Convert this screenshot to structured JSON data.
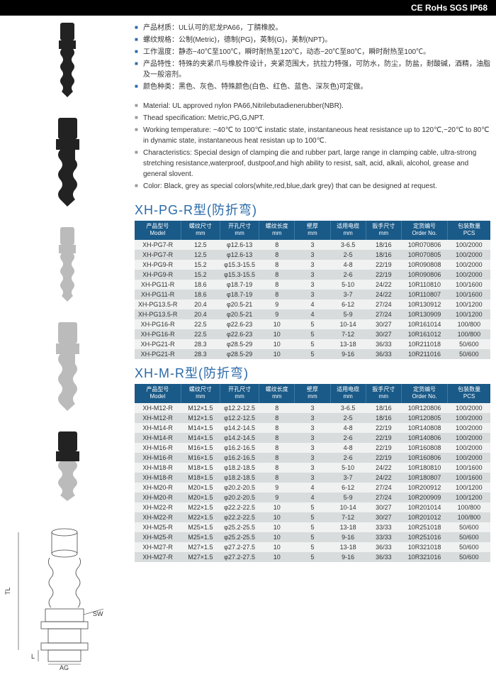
{
  "header_badges": "CE RoHs SGS IP68",
  "specs_cn": [
    "产品材质：UL认可的尼龙PA66，丁腈橡胶。",
    "螺纹规格：公制(Metric)，德制(PG)，英制(G)，美制(NPT)。",
    "工作温度：静态−40℃至100℃，瞬时耐热至120℃，动态−20℃至80℃，瞬时耐热至100℃。",
    "产品特性：特殊的夹紧爪与橡胶件设计，夹紧范围大，抗拉力特强，可防水，防尘，防盐，耐酸碱，酒精，油脂及一般溶剂。",
    "颜色种类：黑色、灰色、特殊颜色(白色、红色、蓝色、深灰色)可定做。"
  ],
  "specs_en": [
    "Material: UL approved nylon PA66,Nitrilebutadienerubber(NBR).",
    "Thead specification: Metric,PG,G,NPT.",
    "Working temperature: −40℃ to 100℃ instatic state, instantaneous heat resistance up to 120℃,−20℃ to 80℃ in dynamic state, instantaneous heat resistan up to 100℃.",
    "Characteristics: Special design of clamping die and rubber part, large range in clamping cable, ultra-strong stretching resistance,waterproof, dustpoof,and high ability to resist, salt, acid, alkali, alcohol, grease and general slovent.",
    "Color: Black, grey as special colors(white,red,blue,dark grey) that can be designed at request."
  ],
  "table_headers": [
    "产品型号\nModel",
    "螺纹尺寸\nmm",
    "开孔尺寸\nmm",
    "螺纹长度\nmm",
    "壁厚\nmm",
    "适用电缆\nmm",
    "扳手尺寸\nmm",
    "定货编号\nOrder No.",
    "包装数量\nPCS"
  ],
  "section1": {
    "title": "XH-PG-R型(防折弯)",
    "rows": [
      [
        "XH-PG7-R",
        "12.5",
        "φ12.6-13",
        "8",
        "3",
        "3-6.5",
        "18/16",
        "10R070806",
        "100/2000"
      ],
      [
        "XH-PG7-R",
        "12.5",
        "φ12.6-13",
        "8",
        "3",
        "2-5",
        "18/16",
        "10R070805",
        "100/2000"
      ],
      [
        "XH-PG9-R",
        "15.2",
        "φ15.3-15.5",
        "8",
        "3",
        "4-8",
        "22/19",
        "10R090808",
        "100/2000"
      ],
      [
        "XH-PG9-R",
        "15.2",
        "φ15.3-15.5",
        "8",
        "3",
        "2-6",
        "22/19",
        "10R090806",
        "100/2000"
      ],
      [
        "XH-PG11-R",
        "18.6",
        "φ18.7-19",
        "8",
        "3",
        "5-10",
        "24/22",
        "10R110810",
        "100/1600"
      ],
      [
        "XH-PG11-R",
        "18.6",
        "φ18.7-19",
        "8",
        "3",
        "3-7",
        "24/22",
        "10R110807",
        "100/1600"
      ],
      [
        "XH-PG13.5-R",
        "20.4",
        "φ20.5-21",
        "9",
        "4",
        "6-12",
        "27/24",
        "10R130912",
        "100/1200"
      ],
      [
        "XH-PG13.5-R",
        "20.4",
        "φ20.5-21",
        "9",
        "4",
        "5-9",
        "27/24",
        "10R130909",
        "100/1200"
      ],
      [
        "XH-PG16-R",
        "22.5",
        "φ22.6-23",
        "10",
        "5",
        "10-14",
        "30/27",
        "10R161014",
        "100/800"
      ],
      [
        "XH-PG16-R",
        "22.5",
        "φ22.6-23",
        "10",
        "5",
        "7-12",
        "30/27",
        "10R161012",
        "100/800"
      ],
      [
        "XH-PG21-R",
        "28.3",
        "φ28.5-29",
        "10",
        "5",
        "13-18",
        "36/33",
        "10R211018",
        "50/600"
      ],
      [
        "XH-PG21-R",
        "28.3",
        "φ28.5-29",
        "10",
        "5",
        "9-16",
        "36/33",
        "10R211016",
        "50/600"
      ]
    ]
  },
  "section2": {
    "title": "XH-M-R型(防折弯)",
    "rows": [
      [
        "XH-M12-R",
        "M12×1.5",
        "φ12.2-12.5",
        "8",
        "3",
        "3-6.5",
        "18/16",
        "10R120806",
        "100/2000"
      ],
      [
        "XH-M12-R",
        "M12×1.5",
        "φ12.2-12.5",
        "8",
        "3",
        "2-5",
        "18/16",
        "10R120805",
        "100/2000"
      ],
      [
        "XH-M14-R",
        "M14×1.5",
        "φ14.2-14.5",
        "8",
        "3",
        "4-8",
        "22/19",
        "10R140808",
        "100/2000"
      ],
      [
        "XH-M14-R",
        "M14×1.5",
        "φ14.2-14.5",
        "8",
        "3",
        "2-6",
        "22/19",
        "10R140806",
        "100/2000"
      ],
      [
        "XH-M16-R",
        "M16×1.5",
        "φ16.2-16.5",
        "8",
        "3",
        "4-8",
        "22/19",
        "10R160808",
        "100/2000"
      ],
      [
        "XH-M16-R",
        "M16×1.5",
        "φ16.2-16.5",
        "8",
        "3",
        "2-6",
        "22/19",
        "10R160806",
        "100/2000"
      ],
      [
        "XH-M18-R",
        "M18×1.5",
        "φ18.2-18.5",
        "8",
        "3",
        "5-10",
        "24/22",
        "10R180810",
        "100/1600"
      ],
      [
        "XH-M18-R",
        "M18×1.5",
        "φ18.2-18.5",
        "8",
        "3",
        "3-7",
        "24/22",
        "10R180807",
        "100/1600"
      ],
      [
        "XH-M20-R",
        "M20×1.5",
        "φ20.2-20.5",
        "9",
        "4",
        "6-12",
        "27/24",
        "10R200912",
        "100/1200"
      ],
      [
        "XH-M20-R",
        "M20×1.5",
        "φ20.2-20.5",
        "9",
        "4",
        "5-9",
        "27/24",
        "10R200909",
        "100/1200"
      ],
      [
        "XH-M22-R",
        "M22×1.5",
        "φ22.2-22.5",
        "10",
        "5",
        "10-14",
        "30/27",
        "10R201014",
        "100/800"
      ],
      [
        "XH-M22-R",
        "M22×1.5",
        "φ22.2-22.5",
        "10",
        "5",
        "7-12",
        "30/27",
        "10R201012",
        "100/800"
      ],
      [
        "XH-M25-R",
        "M25×1.5",
        "φ25.2-25.5",
        "10",
        "5",
        "13-18",
        "33/33",
        "10R251018",
        "50/600"
      ],
      [
        "XH-M25-R",
        "M25×1.5",
        "φ25.2-25.5",
        "10",
        "5",
        "9-16",
        "33/33",
        "10R251016",
        "50/600"
      ],
      [
        "XH-M27-R",
        "M27×1.5",
        "φ27.2-27.5",
        "10",
        "5",
        "13-18",
        "36/33",
        "10R321018",
        "50/600"
      ],
      [
        "XH-M27-R",
        "M27×1.5",
        "φ27.2-27.5",
        "10",
        "5",
        "9-16",
        "36/33",
        "10R321016",
        "50/600"
      ]
    ]
  },
  "diagram_labels": {
    "tl": "TL",
    "sw": "SW",
    "l": "L",
    "ag": "AG"
  },
  "colors": {
    "header_bg": "#1a5a88",
    "title": "#2a6aa8",
    "row_even": "#d8dcdd",
    "row_odd": "#f0f1f1"
  }
}
